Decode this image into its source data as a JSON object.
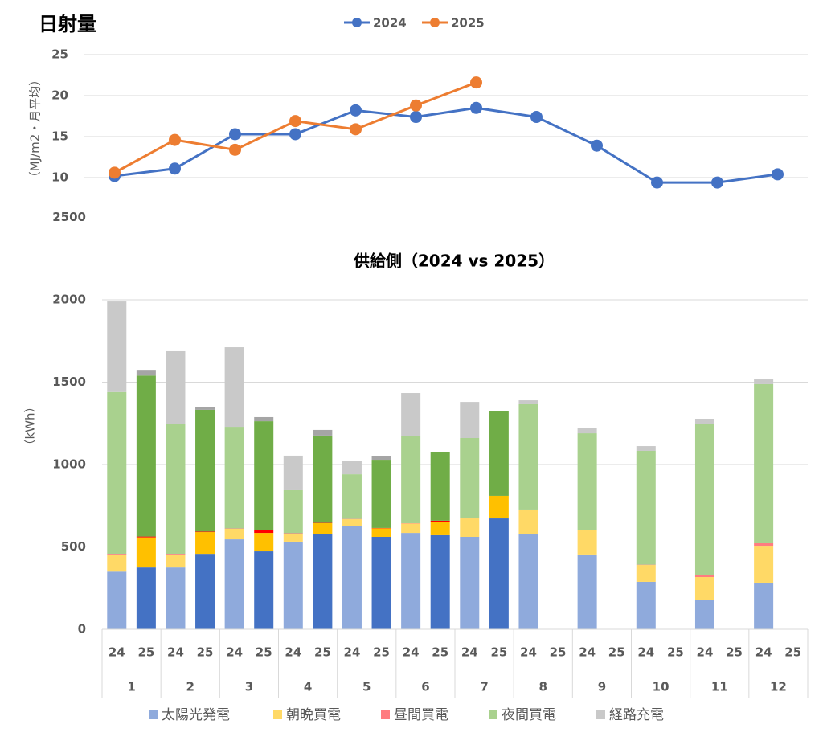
{
  "chart_data": [
    {
      "type": "line",
      "title": "日射量",
      "y_label": "（MJ/m2・月平均）",
      "ylim": [
        5,
        25
      ],
      "yticks": [
        10,
        15,
        20,
        25
      ],
      "grid": true,
      "legend": "top",
      "series": [
        {
          "name": "2024",
          "color": "#4472c4",
          "values": [
            10.2,
            11.1,
            15.3,
            15.3,
            18.2,
            17.4,
            18.5,
            17.4,
            13.9,
            9.4,
            9.4,
            10.4
          ]
        },
        {
          "name": "2025",
          "color": "#ed7d31",
          "values": [
            10.6,
            14.6,
            13.4,
            16.9,
            15.9,
            18.8,
            21.6,
            null,
            null,
            null,
            null,
            null
          ]
        }
      ]
    },
    {
      "type": "bar",
      "stacked": true,
      "title": "供給側（2024 vs 2025）",
      "y_label": "（kWh）",
      "ylim": [
        0,
        2500
      ],
      "yticks": [
        0,
        500,
        1000,
        1500,
        2000,
        2500
      ],
      "grid": true,
      "legend": "bottom",
      "categories": [
        "24",
        "25",
        "24",
        "25",
        "24",
        "25",
        "24",
        "25",
        "24",
        "25",
        "24",
        "25",
        "24",
        "25",
        "24",
        "25",
        "24",
        "25",
        "24",
        "25",
        "24",
        "25",
        "24",
        "25"
      ],
      "groups": [
        "1",
        "2",
        "3",
        "4",
        "5",
        "6",
        "7",
        "8",
        "9",
        "10",
        "11",
        "12"
      ],
      "series": [
        {
          "name": "太陽光発電",
          "colors": {
            "24": "#8faadc",
            "25": "#4472c4"
          },
          "values": [
            350,
            375,
            375,
            458,
            546,
            473,
            532,
            580,
            629,
            561,
            585,
            571,
            561,
            673,
            580,
            null,
            454,
            null,
            288,
            null,
            180,
            null,
            283,
            null
          ]
        },
        {
          "name": "朝晩買電",
          "colors": {
            "24": "#ffd966",
            "25": "#ffc000"
          },
          "values": [
            100,
            183,
            78,
            132,
            64,
            112,
            48,
            64,
            39,
            52,
            57,
            78,
            112,
            137,
            142,
            null,
            146,
            null,
            102,
            null,
            137,
            null,
            224,
            null
          ]
        },
        {
          "name": "昼間買電",
          "colors": {
            "24": "#ff7c80",
            "25": "#ff0000"
          },
          "values": [
            8,
            5,
            5,
            3,
            2,
            15,
            3,
            2,
            2,
            2,
            2,
            10,
            5,
            0,
            5,
            null,
            2,
            null,
            2,
            null,
            10,
            null,
            15,
            null
          ]
        },
        {
          "name": "夜間買電",
          "colors": {
            "24": "#a9d18e",
            "25": "#70ad47"
          },
          "values": [
            982,
            977,
            786,
            739,
            617,
            663,
            261,
            530,
            271,
            414,
            527,
            419,
            483,
            512,
            639,
            null,
            588,
            null,
            691,
            null,
            917,
            null,
            966,
            null
          ]
        },
        {
          "name": "経路充電",
          "colors": {
            "24": "#c9c9c9",
            "25": "#a5a5a5"
          },
          "values": [
            550,
            30,
            444,
            19,
            483,
            25,
            210,
            34,
            79,
            20,
            263,
            0,
            219,
            0,
            24,
            null,
            34,
            null,
            29,
            null,
            34,
            null,
            29,
            null
          ]
        }
      ]
    }
  ]
}
